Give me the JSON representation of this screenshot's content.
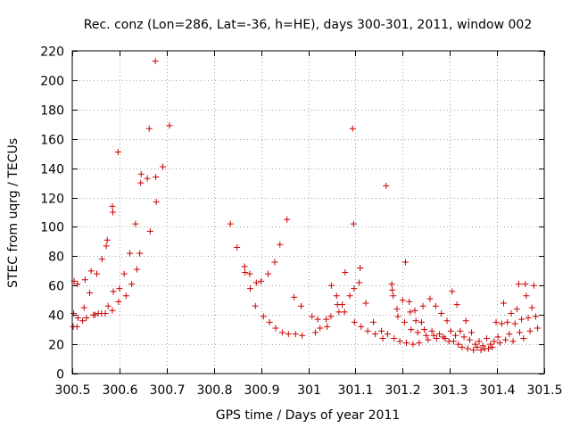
{
  "chart_data": {
    "type": "scatter",
    "title": "Rec. conz (Lon=286, Lat=-36, h=HE), days 300-301, 2011, window 002",
    "xlabel": "GPS time / Days of year 2011",
    "ylabel": "STEC from uqrg / TECUs",
    "xlim": [
      300.5,
      301.5
    ],
    "ylim": [
      0,
      220
    ],
    "grid": true,
    "marker": "+",
    "marker_color": "#cc0000",
    "x_ticks": [
      300.5,
      300.6,
      300.7,
      300.8,
      300.9,
      301.0,
      301.1,
      301.2,
      301.3,
      301.4,
      301.5
    ],
    "x_tick_labels": [
      "300.5",
      "300.6",
      "300.7",
      "300.8",
      "300.9",
      "301",
      "301.1",
      "301.2",
      "301.3",
      "301.4",
      "301.5"
    ],
    "y_ticks": [
      0,
      20,
      40,
      60,
      80,
      100,
      120,
      140,
      160,
      180,
      200,
      220
    ],
    "y_tick_labels": [
      "0",
      "20",
      "40",
      "60",
      "80",
      "100",
      "120",
      "140",
      "160",
      "180",
      "200",
      "220"
    ],
    "points": [
      [
        300.504,
        63
      ],
      [
        300.511,
        61
      ],
      [
        300.527,
        64
      ],
      [
        300.54,
        70
      ],
      [
        300.552,
        68
      ],
      [
        300.563,
        78
      ],
      [
        300.572,
        87
      ],
      [
        300.574,
        91
      ],
      [
        300.585,
        114
      ],
      [
        300.586,
        110
      ],
      [
        300.597,
        151
      ],
      [
        300.61,
        68
      ],
      [
        300.622,
        82
      ],
      [
        300.634,
        102
      ],
      [
        300.643,
        82
      ],
      [
        300.645,
        130
      ],
      [
        300.646,
        136
      ],
      [
        300.659,
        133
      ],
      [
        300.663,
        167
      ],
      [
        300.665,
        97
      ],
      [
        300.676,
        213
      ],
      [
        300.677,
        134
      ],
      [
        300.678,
        117
      ],
      [
        300.692,
        141
      ],
      [
        300.706,
        169
      ],
      [
        300.503,
        41
      ],
      [
        300.512,
        38
      ],
      [
        300.525,
        45
      ],
      [
        300.537,
        55
      ],
      [
        300.548,
        40
      ],
      [
        300.562,
        41
      ],
      [
        300.576,
        46
      ],
      [
        300.587,
        56
      ],
      [
        300.598,
        49
      ],
      [
        300.6,
        58
      ],
      [
        300.614,
        53
      ],
      [
        300.626,
        61
      ],
      [
        300.637,
        71
      ],
      [
        300.502,
        32
      ],
      [
        300.51,
        32
      ],
      [
        300.522,
        36
      ],
      [
        300.53,
        38
      ],
      [
        300.545,
        40
      ],
      [
        300.555,
        41
      ],
      [
        300.57,
        41
      ],
      [
        300.585,
        43
      ],
      [
        300.835,
        102
      ],
      [
        300.849,
        86
      ],
      [
        300.865,
        73
      ],
      [
        300.866,
        69
      ],
      [
        300.876,
        68
      ],
      [
        300.877,
        58
      ],
      [
        300.888,
        46
      ],
      [
        300.89,
        62
      ],
      [
        300.9,
        63
      ],
      [
        300.905,
        39
      ],
      [
        300.915,
        68
      ],
      [
        300.918,
        35
      ],
      [
        300.929,
        76
      ],
      [
        300.931,
        31
      ],
      [
        300.94,
        88
      ],
      [
        300.945,
        28
      ],
      [
        300.955,
        105
      ],
      [
        300.958,
        27
      ],
      [
        300.97,
        52
      ],
      [
        300.973,
        27
      ],
      [
        300.985,
        46
      ],
      [
        300.987,
        26
      ],
      [
        301.008,
        39
      ],
      [
        301.015,
        28
      ],
      [
        301.02,
        37
      ],
      [
        301.025,
        31
      ],
      [
        301.038,
        37
      ],
      [
        301.04,
        32
      ],
      [
        301.048,
        39
      ],
      [
        301.049,
        60
      ],
      [
        301.06,
        53
      ],
      [
        301.062,
        47
      ],
      [
        301.065,
        42
      ],
      [
        301.072,
        47
      ],
      [
        301.077,
        42
      ],
      [
        301.078,
        69
      ],
      [
        301.088,
        53
      ],
      [
        301.094,
        167
      ],
      [
        301.096,
        102
      ],
      [
        301.097,
        58
      ],
      [
        301.098,
        35
      ],
      [
        301.108,
        62
      ],
      [
        301.11,
        72
      ],
      [
        301.112,
        32
      ],
      [
        301.122,
        48
      ],
      [
        301.126,
        29
      ],
      [
        301.138,
        35
      ],
      [
        301.142,
        27
      ],
      [
        301.155,
        29
      ],
      [
        301.158,
        24
      ],
      [
        301.165,
        128
      ],
      [
        301.168,
        27
      ],
      [
        301.177,
        61
      ],
      [
        301.178,
        57
      ],
      [
        301.18,
        53
      ],
      [
        301.182,
        24
      ],
      [
        301.188,
        44
      ],
      [
        301.19,
        39
      ],
      [
        301.194,
        22
      ],
      [
        301.2,
        50
      ],
      [
        301.204,
        35
      ],
      [
        301.206,
        76
      ],
      [
        301.208,
        21
      ],
      [
        301.214,
        49
      ],
      [
        301.216,
        42
      ],
      [
        301.218,
        30
      ],
      [
        301.222,
        20
      ],
      [
        301.226,
        43
      ],
      [
        301.228,
        36
      ],
      [
        301.232,
        28
      ],
      [
        301.235,
        21
      ],
      [
        301.24,
        35
      ],
      [
        301.243,
        46
      ],
      [
        301.246,
        30
      ],
      [
        301.25,
        26
      ],
      [
        301.254,
        23
      ],
      [
        301.258,
        51
      ],
      [
        301.262,
        29
      ],
      [
        301.266,
        26
      ],
      [
        301.27,
        46
      ],
      [
        301.272,
        24
      ],
      [
        301.278,
        27
      ],
      [
        301.282,
        41
      ],
      [
        301.286,
        25
      ],
      [
        301.29,
        24
      ],
      [
        301.294,
        36
      ],
      [
        301.298,
        22
      ],
      [
        301.302,
        29
      ],
      [
        301.305,
        56
      ],
      [
        301.308,
        22
      ],
      [
        301.312,
        26
      ],
      [
        301.315,
        47
      ],
      [
        301.318,
        20
      ],
      [
        301.322,
        29
      ],
      [
        301.326,
        18
      ],
      [
        301.33,
        25
      ],
      [
        301.334,
        36
      ],
      [
        301.338,
        17
      ],
      [
        301.342,
        23
      ],
      [
        301.346,
        28
      ],
      [
        301.35,
        16
      ],
      [
        301.354,
        20
      ],
      [
        301.358,
        18
      ],
      [
        301.362,
        22
      ],
      [
        301.366,
        16
      ],
      [
        301.37,
        19
      ],
      [
        301.374,
        17
      ],
      [
        301.378,
        24
      ],
      [
        301.382,
        17
      ],
      [
        301.386,
        20
      ],
      [
        301.39,
        18
      ],
      [
        301.394,
        22
      ],
      [
        301.398,
        35
      ],
      [
        301.402,
        25
      ],
      [
        301.406,
        21
      ],
      [
        301.41,
        34
      ],
      [
        301.414,
        48
      ],
      [
        301.418,
        23
      ],
      [
        301.422,
        35
      ],
      [
        301.426,
        27
      ],
      [
        301.43,
        41
      ],
      [
        301.434,
        22
      ],
      [
        301.438,
        34
      ],
      [
        301.442,
        44
      ],
      [
        301.446,
        61
      ],
      [
        301.448,
        28
      ],
      [
        301.452,
        37
      ],
      [
        301.456,
        24
      ],
      [
        301.46,
        61
      ],
      [
        301.462,
        53
      ],
      [
        301.466,
        38
      ],
      [
        301.47,
        29
      ],
      [
        301.474,
        45
      ],
      [
        301.478,
        60
      ],
      [
        301.482,
        39
      ],
      [
        301.486,
        31
      ]
    ]
  }
}
